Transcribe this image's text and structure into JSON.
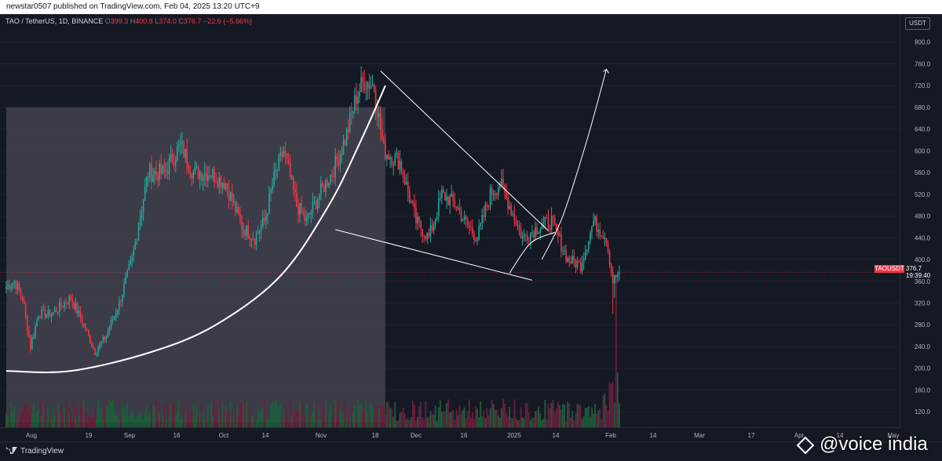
{
  "header": {
    "title": "newstar0507 published on TradingView.com, Feb 04, 2025 13:20 UTC+9"
  },
  "legend": {
    "symbol": "TAO / TetherUS, 1D, BINANCE",
    "o_label": "O",
    "o": "399.3",
    "h_label": "H",
    "h": "400.8",
    "l_label": "L",
    "l": "374.0",
    "c_label": "C",
    "c": "376.7",
    "change": "−22.6 (−5.66%)"
  },
  "price_axis": {
    "unit": "USDT"
  },
  "price_tag": {
    "symbol": "TAOUSDT",
    "price": "376.7",
    "countdown": "19:39:40"
  },
  "footer": {
    "brand": "TradingView"
  },
  "watermark": {
    "text": "@voice india",
    "icon": "binance-square-icon"
  },
  "colors": {
    "up": "#26a69a",
    "down": "#f23645",
    "vol_up": "#1e5d3b",
    "vol_down": "#6b1f3c",
    "zone": "#43434f",
    "line": "#ffffff"
  },
  "chart_data": {
    "type": "candlestick",
    "title": "TAO / TetherUS, 1D, BINANCE",
    "ylim": [
      100,
      840
    ],
    "y_ticks": [
      120,
      160,
      200,
      240,
      280,
      320,
      360,
      400,
      440,
      480,
      520,
      560,
      600,
      640,
      680,
      720,
      760,
      800
    ],
    "x_ticks": [
      "Aug",
      "19",
      "Sep",
      "16",
      "Oct",
      "14",
      "Nov",
      "18",
      "Dec",
      "16",
      "2025",
      "14",
      "Feb",
      "14",
      "Mar",
      "17",
      "Apr",
      "14",
      "May"
    ],
    "last_price": 376.7,
    "close_keyframes": [
      [
        0,
        350
      ],
      [
        5,
        360
      ],
      [
        10,
        330
      ],
      [
        15,
        240
      ],
      [
        20,
        300
      ],
      [
        28,
        300
      ],
      [
        40,
        330
      ],
      [
        48,
        280
      ],
      [
        55,
        230
      ],
      [
        62,
        260
      ],
      [
        70,
        320
      ],
      [
        78,
        400
      ],
      [
        88,
        560
      ],
      [
        98,
        560
      ],
      [
        108,
        610
      ],
      [
        116,
        560
      ],
      [
        126,
        560
      ],
      [
        136,
        540
      ],
      [
        146,
        460
      ],
      [
        154,
        440
      ],
      [
        160,
        470
      ],
      [
        166,
        550
      ],
      [
        172,
        600
      ],
      [
        180,
        500
      ],
      [
        186,
        470
      ],
      [
        194,
        520
      ],
      [
        202,
        560
      ],
      [
        210,
        620
      ],
      [
        217,
        700
      ],
      [
        222,
        730
      ],
      [
        228,
        720
      ],
      [
        234,
        600
      ],
      [
        244,
        580
      ],
      [
        254,
        470
      ],
      [
        262,
        440
      ],
      [
        270,
        520
      ],
      [
        279,
        500
      ],
      [
        284,
        470
      ],
      [
        292,
        440
      ],
      [
        300,
        520
      ],
      [
        306,
        540
      ],
      [
        312,
        500
      ],
      [
        320,
        440
      ],
      [
        330,
        460
      ],
      [
        338,
        470
      ],
      [
        348,
        400
      ],
      [
        356,
        390
      ],
      [
        364,
        470
      ],
      [
        372,
        440
      ],
      [
        376,
        360
      ],
      [
        380,
        376.7
      ]
    ],
    "grey_zone": {
      "top": 680,
      "from_day": 0,
      "to_day": 235
    },
    "bottom_curve": [
      [
        0,
        195
      ],
      [
        40,
        195
      ],
      [
        90,
        230
      ],
      [
        130,
        280
      ],
      [
        170,
        370
      ],
      [
        200,
        500
      ],
      [
        220,
        620
      ],
      [
        235,
        720
      ]
    ],
    "wedge_upper": [
      [
        232,
        747
      ],
      [
        336,
        453
      ]
    ],
    "wedge_lower": [
      [
        204,
        455
      ],
      [
        326,
        362
      ]
    ],
    "projection_arrow": [
      [
        332,
        400
      ],
      [
        345,
        480
      ],
      [
        360,
        620
      ],
      [
        372,
        750
      ]
    ],
    "cup": [
      [
        312,
        375
      ],
      [
        325,
        430
      ],
      [
        340,
        450
      ]
    ]
  }
}
